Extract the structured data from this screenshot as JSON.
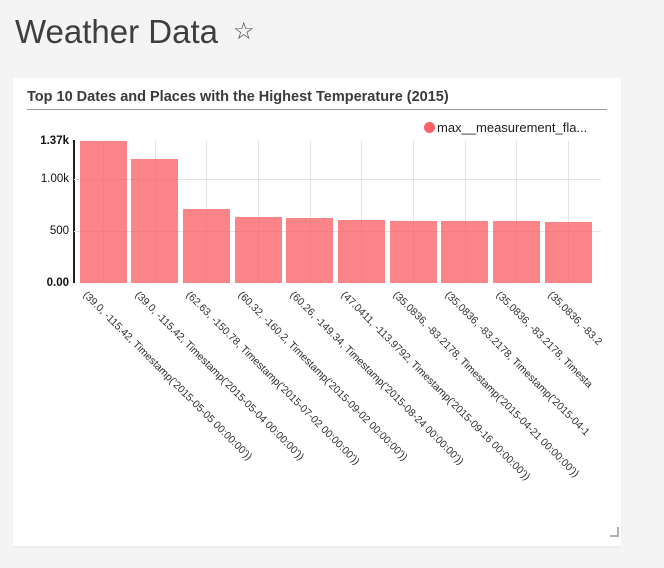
{
  "header": {
    "title": "Weather Data",
    "favorite_glyph": "☆"
  },
  "card": {
    "title": "Top 10 Dates and Places with the Highest Temperature (2015)"
  },
  "legend": {
    "items": [
      {
        "label": "max__measurement_fla...",
        "color": "#fa6268"
      }
    ]
  },
  "chart_data": {
    "type": "bar",
    "title": "Top 10 Dates and Places with the Highest Temperature (2015)",
    "legend_position": "top-right",
    "grid": true,
    "ylim": [
      0,
      1370
    ],
    "yticks": [
      {
        "label": "1.37k",
        "value": 1370,
        "bold": true,
        "grid": false
      },
      {
        "label": "1.00k",
        "value": 1000,
        "bold": false,
        "grid": true
      },
      {
        "label": "500",
        "value": 500,
        "bold": false,
        "grid": true
      },
      {
        "label": "0.00",
        "value": 0,
        "bold": true,
        "grid": false
      }
    ],
    "xtick_rotation": 45,
    "bar_color": "rgba(250,98,104,0.78)",
    "categories": [
      "(39.0, -115.42, Timestamp('2015-05-05 00:00:00'))",
      "(39.0, -115.42, Timestamp('2015-05-04 00:00:00'))",
      "(62.63, -150.78, Timestamp('2015-07-02 00:00:00'))",
      "(60.32, -160.2, Timestamp('2015-09-02 00:00:00'))",
      "(60.26, -149.34, Timestamp('2015-08-24 00:00:00'))",
      "(47.0411, -113.9792, Timestamp('2015-09-16 00:00:00'))",
      "(35.0836, -83.2178, Timestamp('2015-04-21 00:00:00'))",
      "(35.0836, -83.2178, Timestamp('2015-04-1",
      "(35.0836, -83.2178, Timesta",
      "(35.0836, -83.2"
    ],
    "series": [
      {
        "name": "max__measurement_fla...",
        "color": "#fa6268",
        "values": [
          1370,
          1195,
          718,
          640,
          631,
          606,
          597,
          596,
          595,
          593
        ]
      }
    ]
  }
}
